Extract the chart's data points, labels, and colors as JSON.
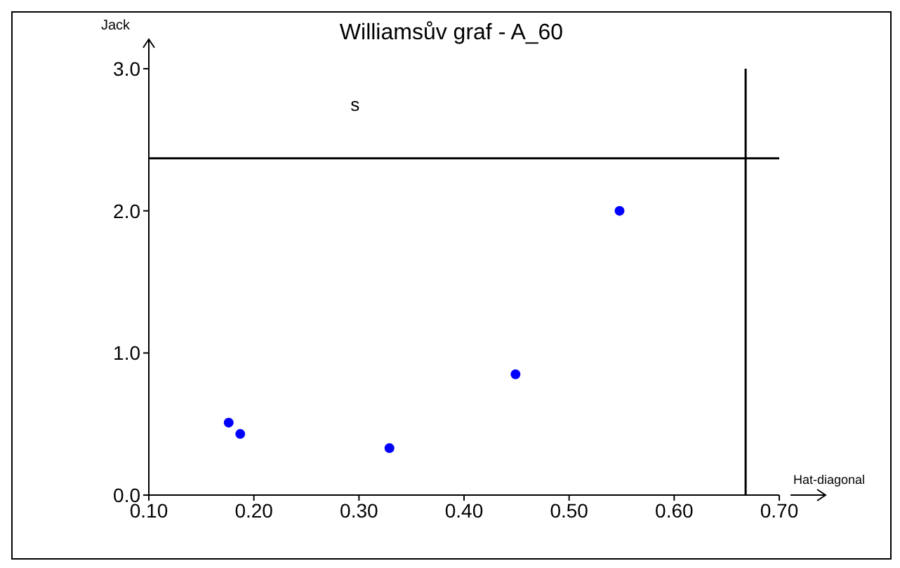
{
  "chart_data": {
    "type": "scatter",
    "title": "Williamsův graf - A_60",
    "xlabel": "Hat-diagonal",
    "ylabel": "Jack",
    "x": [
      0.176,
      0.187,
      0.329,
      0.449,
      0.548
    ],
    "series": [
      {
        "color": "#0000ff",
        "values": [
          0.51,
          0.43,
          0.33,
          0.85,
          2.0
        ]
      }
    ],
    "xlim": [
      0.1,
      0.7
    ],
    "xticks": [
      {
        "value": 0.1,
        "label": "0.10"
      },
      {
        "value": 0.2,
        "label": "0.20"
      },
      {
        "value": 0.3,
        "label": "0.30"
      },
      {
        "value": 0.4,
        "label": "0.40"
      },
      {
        "value": 0.5,
        "label": "0.50"
      },
      {
        "value": 0.6,
        "label": "0.60"
      },
      {
        "value": 0.7,
        "label": "0.70"
      }
    ],
    "ylim": [
      0,
      3
    ],
    "yticks": [
      {
        "value": 0,
        "label": "0.0"
      },
      {
        "value": 1,
        "label": "1.0"
      },
      {
        "value": 2,
        "label": "2.0"
      },
      {
        "value": 3,
        "label": "3.0"
      }
    ],
    "ref_lines": [
      {
        "axis": "y",
        "value": 2.37,
        "color": "#000000"
      },
      {
        "axis": "x",
        "value": 0.668,
        "color": "#000000"
      }
    ],
    "annotations": [
      "s"
    ],
    "grid": false,
    "marker": "circle"
  }
}
